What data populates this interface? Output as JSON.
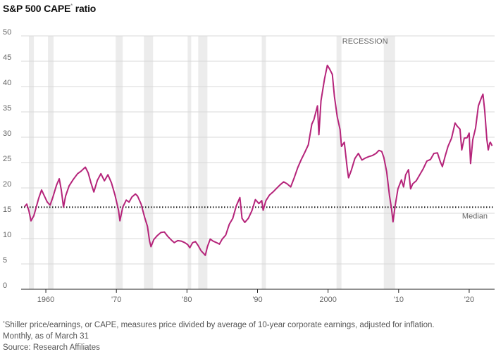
{
  "title_text": "S&P 500 CAPE",
  "title_marker": "*",
  "title_suffix": " ratio",
  "footnote": {
    "marker": "*",
    "line1": "Shiller price/earnings, or CAPE, measures price divided by average of 10-year corporate earnings, adjusted for inflation.",
    "line2": "Monthly, as of March 31",
    "source": "Source: Research Affiliates"
  },
  "colors": {
    "line": "#b5247a",
    "recession": "#ececec",
    "grid": "#d9d9d9",
    "median": "#111111"
  },
  "chart_data": {
    "type": "line",
    "title": "S&P 500 CAPE ratio",
    "series": [
      {
        "values": [
          [
            1957.0,
            16.3
          ],
          [
            1957.3,
            16.8
          ],
          [
            1957.6,
            15.5
          ],
          [
            1957.9,
            13.5
          ],
          [
            1958.3,
            14.5
          ],
          [
            1958.7,
            16.5
          ],
          [
            1959.0,
            18.0
          ],
          [
            1959.4,
            19.6
          ],
          [
            1959.8,
            18.4
          ],
          [
            1960.2,
            17.2
          ],
          [
            1960.6,
            16.6
          ],
          [
            1961.0,
            18.2
          ],
          [
            1961.5,
            20.5
          ],
          [
            1961.9,
            21.8
          ],
          [
            1962.2,
            19.5
          ],
          [
            1962.5,
            16.2
          ],
          [
            1962.8,
            18.4
          ],
          [
            1963.3,
            20.4
          ],
          [
            1963.9,
            21.7
          ],
          [
            1964.5,
            22.8
          ],
          [
            1965.0,
            23.3
          ],
          [
            1965.6,
            24.1
          ],
          [
            1966.0,
            23.0
          ],
          [
            1966.4,
            21.0
          ],
          [
            1966.8,
            19.2
          ],
          [
            1967.3,
            21.5
          ],
          [
            1967.8,
            22.8
          ],
          [
            1968.3,
            21.4
          ],
          [
            1968.8,
            22.6
          ],
          [
            1969.3,
            21.0
          ],
          [
            1969.8,
            18.6
          ],
          [
            1970.3,
            15.6
          ],
          [
            1970.5,
            13.5
          ],
          [
            1970.9,
            16.2
          ],
          [
            1971.4,
            17.6
          ],
          [
            1971.8,
            17.2
          ],
          [
            1972.2,
            18.2
          ],
          [
            1972.7,
            18.8
          ],
          [
            1973.0,
            18.4
          ],
          [
            1973.5,
            16.8
          ],
          [
            1974.0,
            14.2
          ],
          [
            1974.4,
            12.4
          ],
          [
            1974.7,
            9.5
          ],
          [
            1974.9,
            8.4
          ],
          [
            1975.3,
            9.8
          ],
          [
            1975.8,
            10.6
          ],
          [
            1976.3,
            11.2
          ],
          [
            1976.8,
            11.3
          ],
          [
            1977.3,
            10.4
          ],
          [
            1977.8,
            9.7
          ],
          [
            1978.2,
            9.2
          ],
          [
            1978.7,
            9.6
          ],
          [
            1979.2,
            9.5
          ],
          [
            1979.7,
            9.2
          ],
          [
            1980.1,
            8.8
          ],
          [
            1980.4,
            8.2
          ],
          [
            1980.8,
            9.2
          ],
          [
            1981.2,
            9.4
          ],
          [
            1981.6,
            8.6
          ],
          [
            1982.0,
            7.6
          ],
          [
            1982.4,
            7.0
          ],
          [
            1982.6,
            6.7
          ],
          [
            1982.9,
            8.4
          ],
          [
            1983.3,
            9.9
          ],
          [
            1983.7,
            9.5
          ],
          [
            1984.2,
            9.2
          ],
          [
            1984.6,
            8.9
          ],
          [
            1985.0,
            9.9
          ],
          [
            1985.5,
            10.7
          ],
          [
            1986.0,
            12.8
          ],
          [
            1986.5,
            14.0
          ],
          [
            1987.0,
            16.5
          ],
          [
            1987.5,
            18.1
          ],
          [
            1987.8,
            14.0
          ],
          [
            1988.2,
            13.2
          ],
          [
            1988.7,
            14.0
          ],
          [
            1989.2,
            15.5
          ],
          [
            1989.7,
            17.7
          ],
          [
            1990.2,
            16.9
          ],
          [
            1990.6,
            17.5
          ],
          [
            1990.8,
            15.6
          ],
          [
            1991.2,
            17.5
          ],
          [
            1991.7,
            18.6
          ],
          [
            1992.2,
            19.2
          ],
          [
            1992.7,
            19.9
          ],
          [
            1993.2,
            20.6
          ],
          [
            1993.7,
            21.2
          ],
          [
            1994.2,
            20.8
          ],
          [
            1994.7,
            20.2
          ],
          [
            1995.2,
            22.0
          ],
          [
            1995.7,
            24.0
          ],
          [
            1996.2,
            25.6
          ],
          [
            1996.7,
            27.0
          ],
          [
            1997.2,
            28.5
          ],
          [
            1997.7,
            32.6
          ],
          [
            1998.0,
            33.5
          ],
          [
            1998.5,
            36.2
          ],
          [
            1998.7,
            30.5
          ],
          [
            1999.0,
            37.2
          ],
          [
            1999.5,
            41.5
          ],
          [
            1999.9,
            44.2
          ],
          [
            2000.2,
            43.5
          ],
          [
            2000.6,
            42.4
          ],
          [
            2000.9,
            38.0
          ],
          [
            2001.3,
            34.0
          ],
          [
            2001.7,
            31.5
          ],
          [
            2001.9,
            28.2
          ],
          [
            2002.3,
            29.0
          ],
          [
            2002.7,
            24.0
          ],
          [
            2002.9,
            22.0
          ],
          [
            2003.3,
            23.5
          ],
          [
            2003.8,
            25.8
          ],
          [
            2004.3,
            26.8
          ],
          [
            2004.8,
            25.5
          ],
          [
            2005.3,
            25.9
          ],
          [
            2005.8,
            26.2
          ],
          [
            2006.3,
            26.4
          ],
          [
            2006.8,
            26.8
          ],
          [
            2007.2,
            27.4
          ],
          [
            2007.6,
            27.2
          ],
          [
            2007.9,
            26.0
          ],
          [
            2008.3,
            23.2
          ],
          [
            2008.7,
            18.5
          ],
          [
            2009.0,
            15.8
          ],
          [
            2009.2,
            13.3
          ],
          [
            2009.5,
            16.4
          ],
          [
            2009.9,
            19.8
          ],
          [
            2010.4,
            21.6
          ],
          [
            2010.7,
            20.2
          ],
          [
            2011.0,
            22.6
          ],
          [
            2011.4,
            23.6
          ],
          [
            2011.7,
            19.8
          ],
          [
            2012.0,
            20.8
          ],
          [
            2012.5,
            21.4
          ],
          [
            2013.0,
            22.6
          ],
          [
            2013.5,
            23.8
          ],
          [
            2014.0,
            25.3
          ],
          [
            2014.5,
            25.6
          ],
          [
            2015.0,
            26.8
          ],
          [
            2015.5,
            26.9
          ],
          [
            2015.9,
            25.2
          ],
          [
            2016.2,
            24.2
          ],
          [
            2016.6,
            26.3
          ],
          [
            2017.0,
            28.2
          ],
          [
            2017.5,
            29.8
          ],
          [
            2018.0,
            32.8
          ],
          [
            2018.3,
            32.2
          ],
          [
            2018.7,
            31.6
          ],
          [
            2018.95,
            27.5
          ],
          [
            2019.3,
            29.8
          ],
          [
            2019.7,
            29.9
          ],
          [
            2020.0,
            30.8
          ],
          [
            2020.2,
            24.8
          ],
          [
            2020.5,
            29.5
          ],
          [
            2020.9,
            31.8
          ],
          [
            2021.3,
            36.2
          ],
          [
            2021.7,
            37.7
          ],
          [
            2021.95,
            38.5
          ],
          [
            2022.2,
            35.2
          ],
          [
            2022.5,
            29.6
          ],
          [
            2022.7,
            27.5
          ],
          [
            2022.9,
            28.8
          ],
          [
            2023.0,
            29.0
          ],
          [
            2023.25,
            28.3
          ]
        ]
      }
    ],
    "median": 16.2,
    "median_label": "Median",
    "recession_label": "RECESSION",
    "recessions": [
      [
        1957.6,
        1958.3
      ],
      [
        1960.3,
        1961.1
      ],
      [
        1969.9,
        1970.9
      ],
      [
        1973.9,
        1975.2
      ],
      [
        1980.1,
        1980.6
      ],
      [
        1981.6,
        1982.9
      ],
      [
        1990.6,
        1991.2
      ],
      [
        2001.2,
        2001.9
      ],
      [
        2007.9,
        2009.5
      ]
    ],
    "x_ticks": [
      {
        "value": 1960,
        "label": "1960"
      },
      {
        "value": 1970,
        "label": "'70"
      },
      {
        "value": 1980,
        "label": "'80"
      },
      {
        "value": 1990,
        "label": "'90"
      },
      {
        "value": 2000,
        "label": "2000"
      },
      {
        "value": 2010,
        "label": "'10"
      },
      {
        "value": 2020,
        "label": "'20"
      }
    ],
    "y_ticks": [
      0,
      5,
      10,
      15,
      20,
      25,
      30,
      35,
      40,
      45,
      50
    ],
    "xlim": [
      1956.5,
      2023.6
    ],
    "ylim": [
      0,
      50
    ],
    "grid": true
  }
}
